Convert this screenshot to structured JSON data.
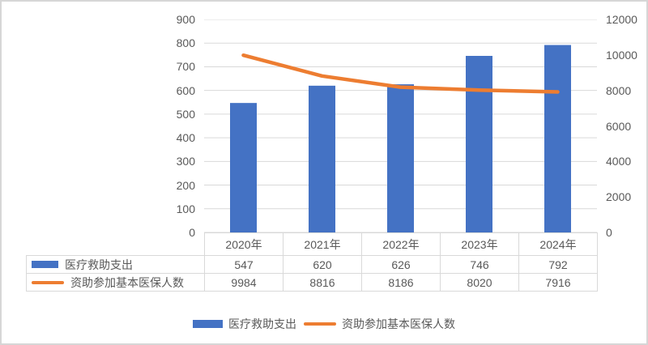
{
  "frame": {
    "background": "#ffffff",
    "border_color": "#d6d6d6"
  },
  "chart_data": {
    "type": "combo-bar-line",
    "title": "",
    "categories": [
      "2020年",
      "2021年",
      "2022年",
      "2023年",
      "2024年"
    ],
    "series": [
      {
        "name": "医疗救助支出",
        "chart_type": "bar",
        "axis": "left",
        "color": "#4472C4",
        "values": [
          547,
          620,
          626,
          746,
          792
        ]
      },
      {
        "name": "资助参加基本医保人数",
        "chart_type": "line",
        "axis": "right",
        "color": "#ED7D31",
        "values": [
          9984,
          8816,
          8186,
          8020,
          7916
        ]
      }
    ],
    "left_axis": {
      "min": 0,
      "max": 900,
      "step": 100,
      "ticks": [
        "900",
        "800",
        "700",
        "600",
        "500",
        "400",
        "300",
        "200",
        "100",
        "0"
      ]
    },
    "right_axis": {
      "min": 0,
      "max": 12000,
      "step": 2000,
      "ticks": [
        "12000",
        "10000",
        "8000",
        "6000",
        "4000",
        "2000",
        "0"
      ]
    },
    "gridlines": {
      "horizontal": true,
      "color": "#d9d9d9"
    },
    "legend_position": "bottom",
    "show_data_table": true,
    "text_color": "#595959"
  }
}
